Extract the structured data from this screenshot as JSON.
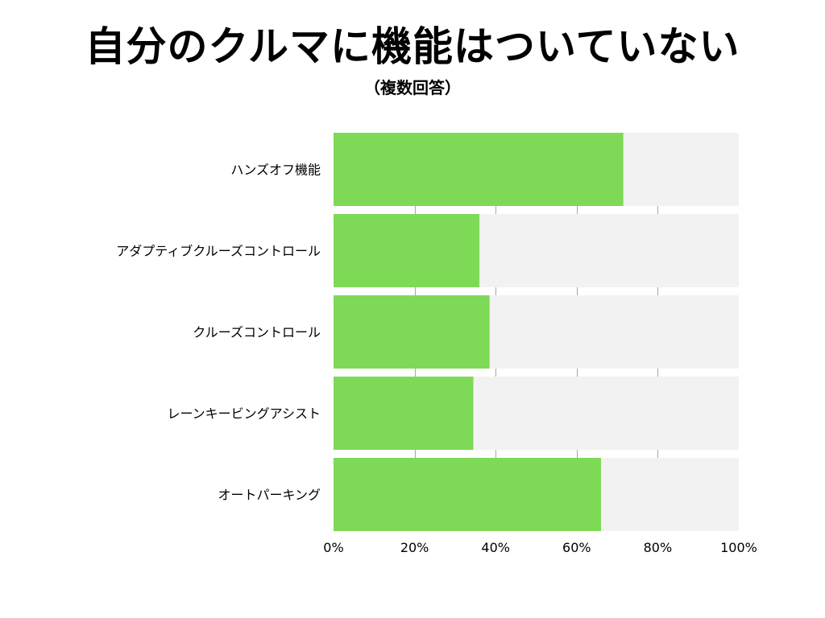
{
  "chart_data": {
    "type": "bar",
    "orientation": "horizontal",
    "title": "自分のクルマに機能はついていない",
    "subtitle": "（複数回答）",
    "categories": [
      "ハンズオフ機能",
      "アダプティブクルーズコントロール",
      "クルーズコントロール",
      "レーンキービングアシスト",
      "オートパーキング"
    ],
    "values": [
      71.5,
      36,
      38.5,
      34.5,
      66
    ],
    "xlim": [
      0,
      100
    ],
    "xticks": [
      0,
      20,
      40,
      60,
      80,
      100
    ],
    "xtick_labels": [
      "0%",
      "20%",
      "40%",
      "60%",
      "80%",
      "100%"
    ],
    "grid": true,
    "colors": {
      "bar": "#7ED957",
      "track": "#F2F2F2",
      "grid": "#A6A6A6"
    }
  }
}
